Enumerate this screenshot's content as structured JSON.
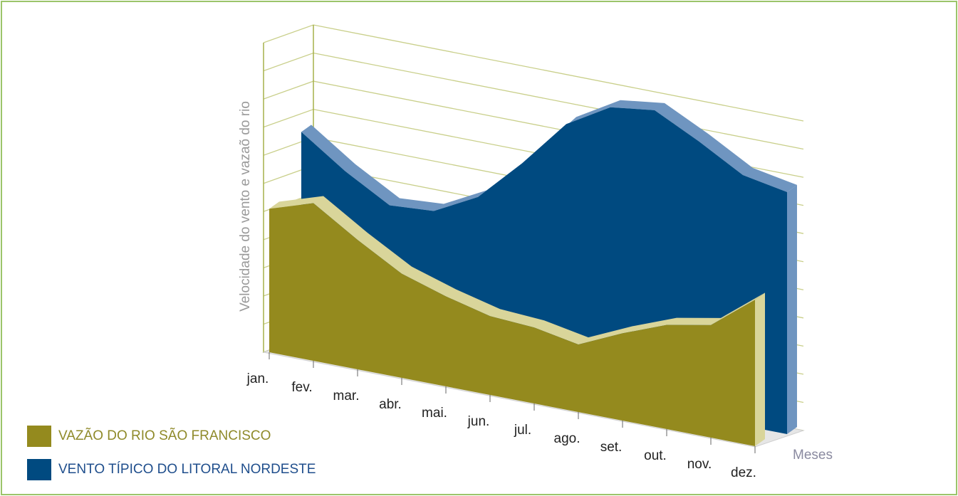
{
  "chart_data": {
    "type": "area3d",
    "y_axis_label": "Velocidade do vento e vazaõ do rio",
    "x_axis_label": "Meses",
    "categories": [
      "jan.",
      "fev.",
      "mar.",
      "abr.",
      "mai.",
      "jun.",
      "jul.",
      "ago.",
      "set.",
      "out.",
      "nov.",
      "dez."
    ],
    "series": [
      {
        "name": "VAZÃO DO RIO SÃO FRANCISCO",
        "color": "#948a1e",
        "values": [
          5.1,
          5.6,
          4.6,
          3.7,
          3.2,
          2.8,
          2.7,
          2.4,
          3.1,
          3.7,
          4.0,
          5.2
        ]
      },
      {
        "name": "VENTO TÍPICO DO LITORAL NORDESTE",
        "color": "#004a80",
        "values": [
          7.4,
          6.3,
          5.4,
          5.5,
          6.3,
          7.8,
          9.5,
          10.4,
          10.6,
          9.8,
          8.9,
          8.6
        ]
      }
    ],
    "ylim": [
      0,
      11
    ],
    "yticks": [
      0,
      1,
      2,
      3,
      4,
      5,
      6,
      7,
      8,
      9,
      10,
      11
    ],
    "grid": true
  }
}
